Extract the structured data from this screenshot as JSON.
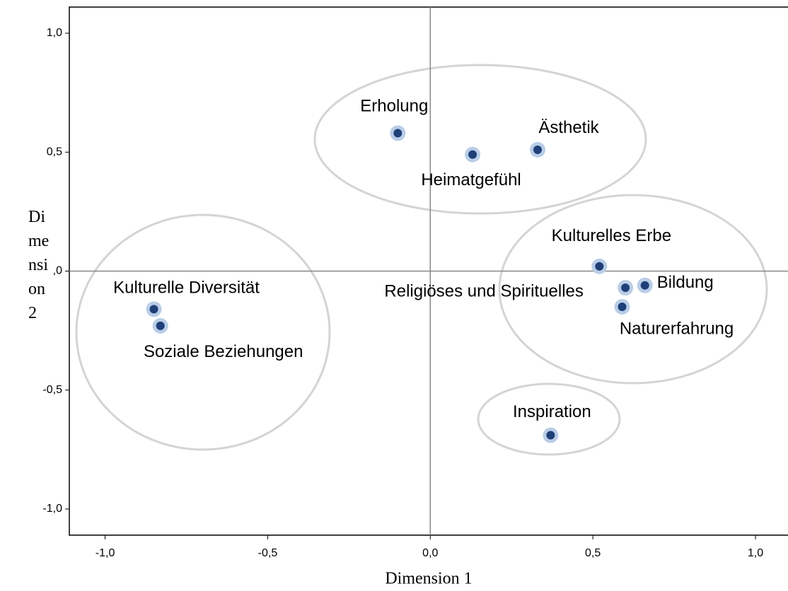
{
  "chart_data": {
    "type": "scatter",
    "x_label": "Dimension 1",
    "y_label": "Dimension 2",
    "labels": [
      "Erholung",
      "Heimatgefühl",
      "Ästhetik",
      "Kulturelles Erbe",
      "Religiöses und Spirituelles",
      "Bildung",
      "Naturerfahrung",
      "Kulturelle Diversität",
      "Soziale Beziehungen",
      "Inspiration"
    ],
    "x": [
      -0.1,
      0.13,
      0.33,
      0.52,
      0.6,
      0.66,
      0.59,
      -0.85,
      -0.83,
      0.37
    ],
    "values": [
      0.58,
      0.49,
      0.51,
      0.02,
      -0.07,
      -0.06,
      -0.15,
      -0.16,
      -0.23,
      -0.69
    ],
    "color": "#1f3f78",
    "xlim": [
      -1.11,
      1.1
    ],
    "ylim": [
      -1.11,
      1.11
    ],
    "xticks": [
      {
        "value": -1.0,
        "label": "-1,0"
      },
      {
        "value": -0.5,
        "label": "-0,5"
      },
      {
        "value": 0.0,
        "label": "0,0"
      },
      {
        "value": 0.5,
        "label": "0,5"
      },
      {
        "value": 1.0,
        "label": "1,0"
      }
    ],
    "yticks": [
      {
        "value": -1.0,
        "label": "-1,0"
      },
      {
        "value": -0.5,
        "label": "-0,5"
      },
      {
        "value": 0.0,
        "label": "0,0"
      },
      {
        "value": 0.5,
        "label": "0,5"
      },
      {
        "value": 1.0,
        "label": "1,0"
      }
    ]
  }
}
